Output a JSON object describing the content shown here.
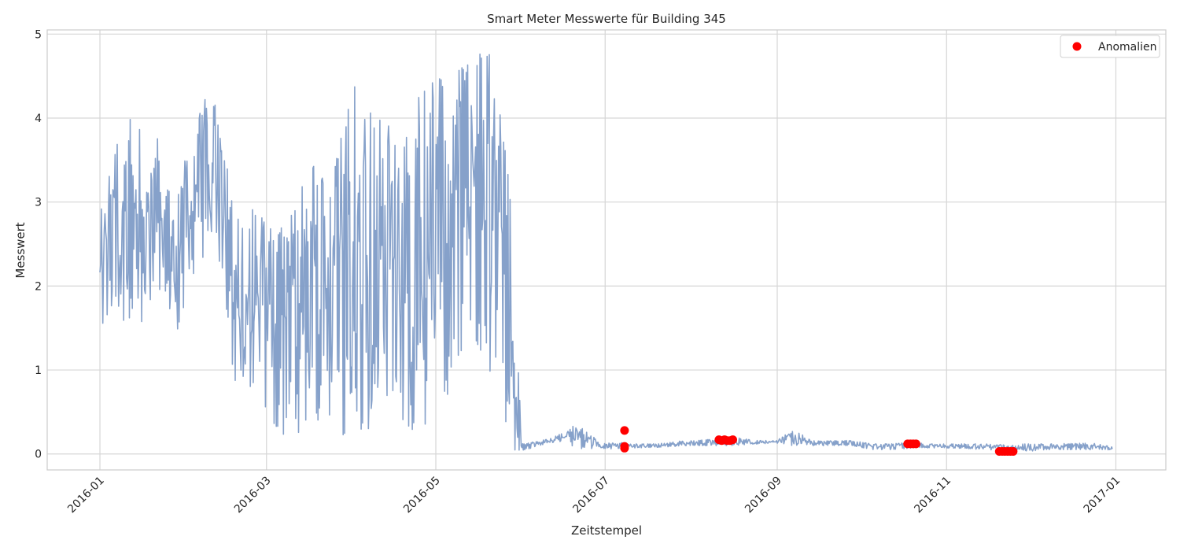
{
  "chart_data": {
    "type": "line",
    "title": "Smart Meter Messwerte für Building 345",
    "xlabel": "Zeitstempel",
    "ylabel": "Messwert",
    "xlim": [
      "2015-12-13",
      "2017-01-19"
    ],
    "ylim": [
      -0.19,
      5.05
    ],
    "grid": true,
    "legend_position": "top-right",
    "x_tick_labels": [
      "2016-01",
      "2016-03",
      "2016-05",
      "2016-07",
      "2016-09",
      "2016-11",
      "2017-01"
    ],
    "y_tick_labels": [
      "0",
      "1",
      "2",
      "3",
      "4",
      "5"
    ],
    "series": [
      {
        "color": "#7f9cc7",
        "x": [
          "2016-01-01",
          "2016-01-08",
          "2016-01-15",
          "2016-01-22",
          "2016-01-29",
          "2016-02-05",
          "2016-02-12",
          "2016-02-19",
          "2016-02-26",
          "2016-03-04",
          "2016-03-11",
          "2016-03-18",
          "2016-03-25",
          "2016-04-01",
          "2016-04-08",
          "2016-04-15",
          "2016-04-22",
          "2016-04-29",
          "2016-05-06",
          "2016-05-13",
          "2016-05-20",
          "2016-05-27",
          "2016-06-01",
          "2016-06-08",
          "2016-06-15",
          "2016-06-22",
          "2016-06-29",
          "2016-07-06",
          "2016-07-13",
          "2016-07-20",
          "2016-07-27",
          "2016-08-03",
          "2016-08-10",
          "2016-08-17",
          "2016-08-24",
          "2016-08-31",
          "2016-09-07",
          "2016-09-14",
          "2016-09-21",
          "2016-09-28",
          "2016-10-05",
          "2016-10-12",
          "2016-10-19",
          "2016-10-26",
          "2016-11-02",
          "2016-11-09",
          "2016-11-16",
          "2016-11-23",
          "2016-11-30",
          "2016-12-06",
          "2016-12-24",
          "2016-12-31"
        ],
        "low": [
          1.45,
          1.55,
          1.5,
          2.0,
          1.45,
          2.3,
          2.4,
          0.75,
          0.8,
          0.3,
          0.15,
          0.35,
          0.4,
          0.05,
          0.35,
          0.25,
          0.25,
          0.3,
          0.75,
          1.5,
          1.05,
          0.05,
          0.04,
          0.1,
          0.15,
          0.06,
          0.06,
          0.06,
          0.07,
          0.08,
          0.09,
          0.1,
          0.1,
          0.1,
          0.12,
          0.12,
          0.1,
          0.1,
          0.1,
          0.1,
          0.05,
          0.05,
          0.07,
          0.07,
          0.07,
          0.06,
          0.05,
          0.03,
          0.03,
          0.05,
          0.05,
          0.05
        ],
        "high": [
          2.85,
          3.9,
          4.05,
          3.75,
          3.1,
          4.28,
          4.15,
          2.85,
          2.92,
          2.62,
          2.9,
          3.62,
          3.32,
          4.4,
          4.25,
          3.85,
          4.32,
          4.42,
          4.52,
          4.65,
          4.85,
          3.7,
          0.12,
          0.16,
          0.24,
          0.38,
          0.12,
          0.14,
          0.12,
          0.12,
          0.15,
          0.16,
          0.18,
          0.2,
          0.16,
          0.16,
          0.28,
          0.16,
          0.16,
          0.16,
          0.12,
          0.12,
          0.14,
          0.12,
          0.12,
          0.12,
          0.12,
          0.12,
          0.12,
          0.12,
          0.13,
          0.08
        ]
      }
    ],
    "scatter": {
      "name": "Anomalien",
      "color": "#ff0000",
      "points": [
        [
          "2016-07-08",
          0.28
        ],
        [
          "2016-07-08",
          0.09
        ],
        [
          "2016-07-08",
          0.07
        ],
        [
          "2016-08-11",
          0.17
        ],
        [
          "2016-08-12",
          0.16
        ],
        [
          "2016-08-13",
          0.17
        ],
        [
          "2016-08-14",
          0.16
        ],
        [
          "2016-08-15",
          0.16
        ],
        [
          "2016-08-16",
          0.17
        ],
        [
          "2016-10-18",
          0.12
        ],
        [
          "2016-10-19",
          0.12
        ],
        [
          "2016-10-20",
          0.12
        ],
        [
          "2016-10-21",
          0.12
        ],
        [
          "2016-11-20",
          0.03
        ],
        [
          "2016-11-21",
          0.03
        ],
        [
          "2016-11-22",
          0.03
        ],
        [
          "2016-11-23",
          0.03
        ],
        [
          "2016-11-24",
          0.03
        ],
        [
          "2016-11-25",
          0.03
        ]
      ]
    }
  }
}
